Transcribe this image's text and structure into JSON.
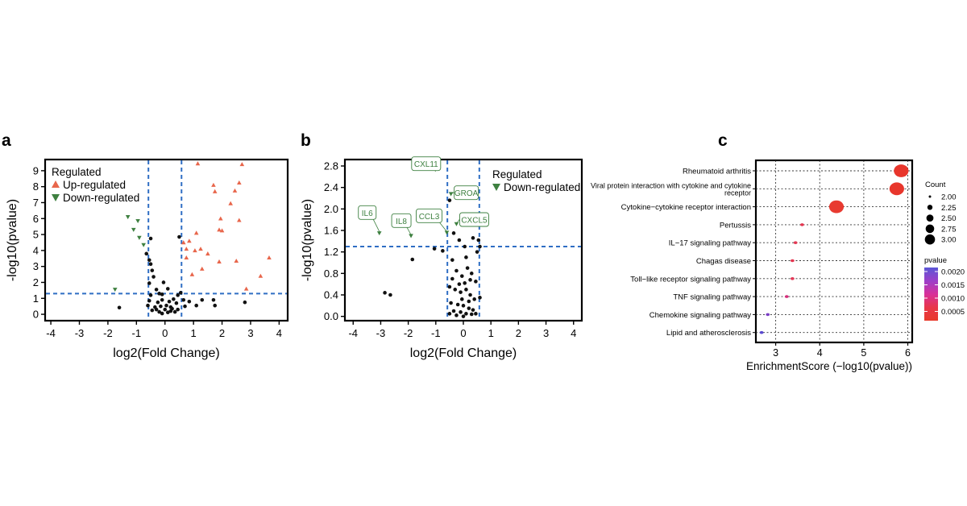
{
  "panels": {
    "a": {
      "letter": "a"
    },
    "b": {
      "letter": "b"
    },
    "c": {
      "letter": "c"
    }
  },
  "colors": {
    "up": "#e8664b",
    "down": "#3e8040",
    "nonsig": "#111111",
    "threshold": "#2f6ec4",
    "label_border": "#3e8040",
    "dot": "#e8362c"
  },
  "chart_data": [
    {
      "type": "scatter",
      "panel": "a",
      "xlabel": "log2(Fold Change)",
      "ylabel": "-log10(pvalue)",
      "xlim": [
        -4.2,
        4.3
      ],
      "ylim": [
        -0.4,
        9.7
      ],
      "xticks": [
        -4,
        -3,
        -2,
        -1,
        0,
        1,
        2,
        3,
        4
      ],
      "yticks": [
        0,
        1,
        2,
        3,
        4,
        5,
        6,
        7,
        8,
        9
      ],
      "thresholds": {
        "x": [
          -0.58,
          0.58
        ],
        "y": 1.3
      },
      "legend": {
        "title": "Regulated",
        "position": "top-left",
        "entries": [
          "Up-regulated",
          "Down-regulated"
        ]
      },
      "series": [
        {
          "name": "Up-regulated",
          "marker": "triangle-up",
          "points": [
            [
              1.15,
              9.45
            ],
            [
              2.7,
              9.4
            ],
            [
              1.7,
              8.1
            ],
            [
              2.6,
              8.25
            ],
            [
              2.45,
              7.75
            ],
            [
              1.75,
              7.7
            ],
            [
              2.3,
              6.95
            ],
            [
              1.95,
              6.0
            ],
            [
              2.6,
              5.9
            ],
            [
              1.9,
              5.3
            ],
            [
              2.0,
              5.25
            ],
            [
              1.1,
              5.1
            ],
            [
              0.85,
              4.6
            ],
            [
              1.25,
              4.1
            ],
            [
              1.05,
              4.0
            ],
            [
              1.5,
              3.8
            ],
            [
              0.75,
              3.55
            ],
            [
              1.9,
              3.3
            ],
            [
              2.5,
              3.35
            ],
            [
              3.65,
              3.55
            ],
            [
              1.3,
              2.85
            ],
            [
              0.95,
              2.5
            ],
            [
              3.35,
              2.4
            ],
            [
              2.85,
              1.6
            ],
            [
              0.75,
              4.1
            ],
            [
              0.65,
              4.5
            ]
          ]
        },
        {
          "name": "Down-regulated",
          "marker": "triangle-down",
          "points": [
            [
              -1.3,
              6.1
            ],
            [
              -0.95,
              5.85
            ],
            [
              -1.1,
              5.3
            ],
            [
              -1.75,
              1.55
            ],
            [
              -0.9,
              4.8
            ],
            [
              -0.75,
              4.35
            ]
          ]
        },
        {
          "name": "",
          "marker": "circle",
          "points": [
            [
              -1.6,
              0.42
            ],
            [
              -0.5,
              4.75
            ],
            [
              -0.65,
              3.8
            ],
            [
              -0.55,
              3.4
            ],
            [
              -0.5,
              3.15
            ],
            [
              -0.45,
              2.75
            ],
            [
              -0.4,
              2.35
            ],
            [
              -0.55,
              1.95
            ],
            [
              -0.3,
              1.55
            ],
            [
              -0.5,
              1.2
            ],
            [
              -0.55,
              0.85
            ],
            [
              -0.6,
              0.55
            ],
            [
              -0.35,
              0.45
            ],
            [
              -0.2,
              1.3
            ],
            [
              -0.1,
              0.9
            ],
            [
              0.05,
              0.55
            ],
            [
              0.2,
              0.45
            ],
            [
              0.3,
              0.95
            ],
            [
              0.45,
              1.2
            ],
            [
              0.55,
              1.35
            ],
            [
              0.5,
              4.85
            ],
            [
              -0.05,
              2.0
            ],
            [
              -0.1,
              1.25
            ],
            [
              0.0,
              0.3
            ],
            [
              -0.2,
              0.15
            ],
            [
              -0.1,
              0.05
            ],
            [
              0.1,
              0.12
            ],
            [
              0.2,
              0.2
            ],
            [
              0.35,
              0.15
            ],
            [
              -0.3,
              0.3
            ],
            [
              -0.15,
              0.5
            ],
            [
              0.15,
              0.8
            ],
            [
              0.4,
              0.7
            ],
            [
              -0.45,
              0.25
            ],
            [
              0.65,
              0.9
            ],
            [
              0.85,
              0.8
            ],
            [
              0.7,
              0.5
            ],
            [
              1.3,
              0.9
            ],
            [
              1.1,
              0.55
            ],
            [
              1.7,
              0.9
            ],
            [
              1.75,
              0.55
            ],
            [
              2.8,
              0.75
            ],
            [
              0.1,
              1.6
            ],
            [
              -0.25,
              0.75
            ],
            [
              0.25,
              0.35
            ],
            [
              0.45,
              0.3
            ]
          ]
        }
      ]
    },
    {
      "type": "scatter",
      "panel": "b",
      "xlabel": "log2(Fold Change)",
      "ylabel": "-log10(pvalue)",
      "xlim": [
        -4.3,
        4.3
      ],
      "ylim": [
        -0.08,
        2.92
      ],
      "xticks": [
        -4,
        -3,
        -2,
        -1,
        0,
        1,
        2,
        3,
        4
      ],
      "yticks": [
        "0.0",
        "0.4",
        "0.8",
        "1.2",
        "1.6",
        "2.0",
        "2.4",
        "2.8"
      ],
      "thresholds": {
        "x": [
          -0.58,
          0.58
        ],
        "y": 1.3
      },
      "legend": {
        "title": "Regulated",
        "position": "top-right",
        "entries": [
          "Down-regulated"
        ]
      },
      "annotations": [
        {
          "text": "CXL11",
          "point": [
            -1.0,
            2.7
          ]
        },
        {
          "text": "GROA",
          "point": [
            -0.45,
            2.28
          ]
        },
        {
          "text": "IL6",
          "point": [
            -3.05,
            1.58
          ]
        },
        {
          "text": "IL8",
          "point": [
            -1.9,
            1.52
          ]
        },
        {
          "text": "CCL3",
          "point": [
            -0.6,
            1.58
          ]
        },
        {
          "text": "CXCL5",
          "point": [
            -0.25,
            1.72
          ]
        }
      ],
      "series": [
        {
          "name": "Down-regulated",
          "marker": "triangle-down",
          "points": [
            [
              -1.0,
              2.76
            ],
            [
              -0.45,
              2.28
            ],
            [
              -3.05,
              1.55
            ],
            [
              -1.9,
              1.5
            ],
            [
              -0.6,
              1.56
            ],
            [
              -0.25,
              1.72
            ]
          ]
        },
        {
          "name": "",
          "marker": "circle",
          "points": [
            [
              -2.85,
              0.44
            ],
            [
              -2.65,
              0.4
            ],
            [
              -1.85,
              1.06
            ],
            [
              -1.05,
              1.26
            ],
            [
              -0.75,
              1.22
            ],
            [
              -0.5,
              2.16
            ],
            [
              -0.35,
              1.55
            ],
            [
              -0.15,
              1.42
            ],
            [
              0.05,
              1.3
            ],
            [
              0.35,
              1.46
            ],
            [
              0.55,
              1.42
            ],
            [
              0.6,
              1.3
            ],
            [
              0.5,
              1.2
            ],
            [
              0.1,
              1.1
            ],
            [
              -0.4,
              1.05
            ],
            [
              -0.25,
              0.85
            ],
            [
              -0.05,
              0.75
            ],
            [
              0.15,
              0.9
            ],
            [
              0.3,
              0.8
            ],
            [
              0.45,
              0.65
            ],
            [
              -0.5,
              0.55
            ],
            [
              -0.3,
              0.5
            ],
            [
              -0.1,
              0.45
            ],
            [
              0.1,
              0.5
            ],
            [
              0.25,
              0.4
            ],
            [
              0.4,
              0.32
            ],
            [
              -0.45,
              0.25
            ],
            [
              -0.2,
              0.22
            ],
            [
              0.0,
              0.2
            ],
            [
              0.2,
              0.15
            ],
            [
              0.35,
              0.12
            ],
            [
              -0.35,
              0.1
            ],
            [
              -0.1,
              0.08
            ],
            [
              0.1,
              0.05
            ],
            [
              0.3,
              0.04
            ],
            [
              -0.25,
              0.02
            ],
            [
              0.0,
              0.0
            ],
            [
              -0.15,
              0.6
            ],
            [
              0.05,
              0.62
            ],
            [
              -0.4,
              0.7
            ],
            [
              0.6,
              0.35
            ],
            [
              0.45,
              0.05
            ],
            [
              -0.5,
              0.05
            ],
            [
              0.2,
              0.28
            ],
            [
              -0.05,
              0.32
            ],
            [
              0.25,
              0.68
            ]
          ]
        }
      ]
    },
    {
      "type": "bubble",
      "panel": "c",
      "xlabel": "EnrichmentScore (−log10(pvalue))",
      "xlim": [
        2.55,
        6.1
      ],
      "xticks": [
        3,
        4,
        5,
        6
      ],
      "categories": [
        "Rheumatoid arthritis",
        "Viral protein interaction with cytokine and cytokine receptor",
        "Cytokine−cytokine receptor interaction",
        "Pertussis",
        "IL−17 signaling pathway",
        "Chagas disease",
        "Toll−like receptor signaling pathway",
        "TNF signaling pathway",
        "Chemokine signaling pathway",
        "Lipid and atherosclerosis"
      ],
      "category_lines": [
        [
          "Rheumatoid arthritis"
        ],
        [
          "Viral protein interaction with cytokine and cytokine",
          "receptor"
        ],
        [
          "Cytokine−cytokine receptor interaction"
        ],
        [
          "Pertussis"
        ],
        [
          "IL−17 signaling pathway"
        ],
        [
          "Chagas disease"
        ],
        [
          "Toll−like receptor signaling pathway"
        ],
        [
          "TNF signaling pathway"
        ],
        [
          "Chemokine signaling pathway"
        ],
        [
          "Lipid and atherosclerosis"
        ]
      ],
      "points": [
        {
          "score": 5.85,
          "count": 3.0,
          "color": "#e8362c"
        },
        {
          "score": 5.75,
          "count": 3.0,
          "color": "#e8362c"
        },
        {
          "score": 4.38,
          "count": 3.0,
          "color": "#e83a30"
        },
        {
          "score": 3.6,
          "count": 2.0,
          "color": "#e43650"
        },
        {
          "score": 3.45,
          "count": 2.0,
          "color": "#e23a55"
        },
        {
          "score": 3.38,
          "count": 2.0,
          "color": "#e43650"
        },
        {
          "score": 3.38,
          "count": 2.0,
          "color": "#e13a58"
        },
        {
          "score": 3.25,
          "count": 2.0,
          "color": "#d42e7a"
        },
        {
          "score": 2.82,
          "count": 2.0,
          "color": "#7a3ec4"
        },
        {
          "score": 2.68,
          "count": 2.0,
          "color": "#5a4ad0"
        }
      ],
      "size_legend": {
        "title": "Count",
        "entries": [
          "2.00",
          "2.25",
          "2.50",
          "2.75",
          "3.00"
        ]
      },
      "color_legend": {
        "title": "pvalue",
        "ticks": [
          "0.0020",
          "0.0015",
          "0.0010",
          "0.0005"
        ],
        "gradient": [
          "#5b56d6",
          "#9b3fc9",
          "#d8309a",
          "#e8364a",
          "#e83a2a"
        ]
      }
    }
  ]
}
